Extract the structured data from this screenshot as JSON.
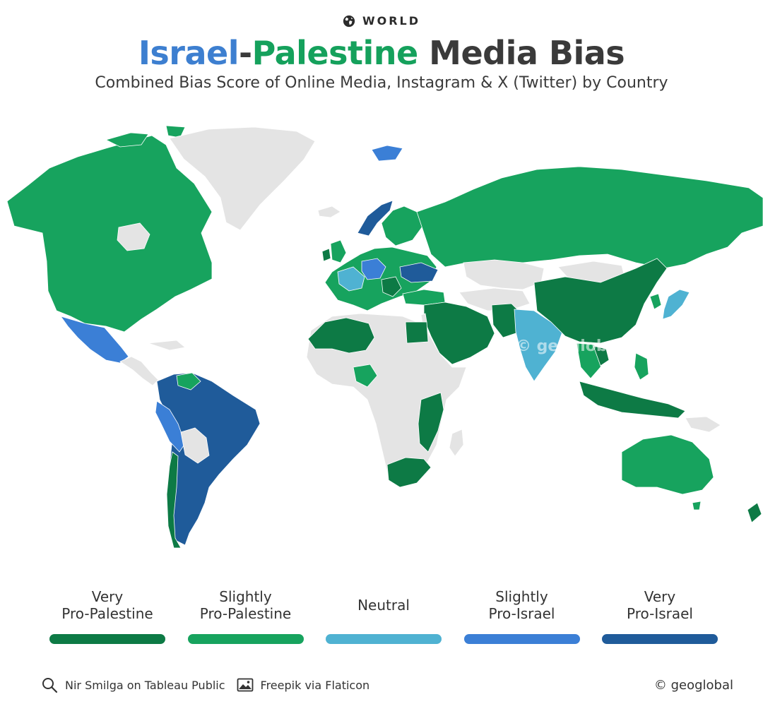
{
  "header": {
    "kicker": "WORLD",
    "title_israel": "Israel",
    "title_dash": "-",
    "title_palestine": "Palestine",
    "title_rest": " Media Bias",
    "subtitle": "Combined Bias Score of Online Media, Instagram & X (Twitter) by Country"
  },
  "map": {
    "watermark": "© geoglobal",
    "colors": {
      "no_data": "#e4e4e4",
      "very_pro_palestine": "#0d7a45",
      "slightly_pro_palestine": "#17a35e",
      "neutral": "#4fb2d2",
      "slightly_pro_israel": "#3b7fd6",
      "very_pro_israel": "#1f5b9a"
    }
  },
  "legend": [
    {
      "label": "Very\nPro-Palestine",
      "color": "#0d7a45"
    },
    {
      "label": "Slightly\nPro-Palestine",
      "color": "#17a35e"
    },
    {
      "label": "Neutral",
      "color": "#4fb2d2"
    },
    {
      "label": "Slightly\nPro-Israel",
      "color": "#3b7fd6"
    },
    {
      "label": "Very\nPro-Israel",
      "color": "#1f5b9a"
    }
  ],
  "footer": {
    "source": "Nir Smilga on Tableau Public",
    "source_icon": "search-icon",
    "image_credit": "Freepik via Flaticon",
    "image_icon": "image-icon",
    "copyright": "© geoglobal"
  }
}
